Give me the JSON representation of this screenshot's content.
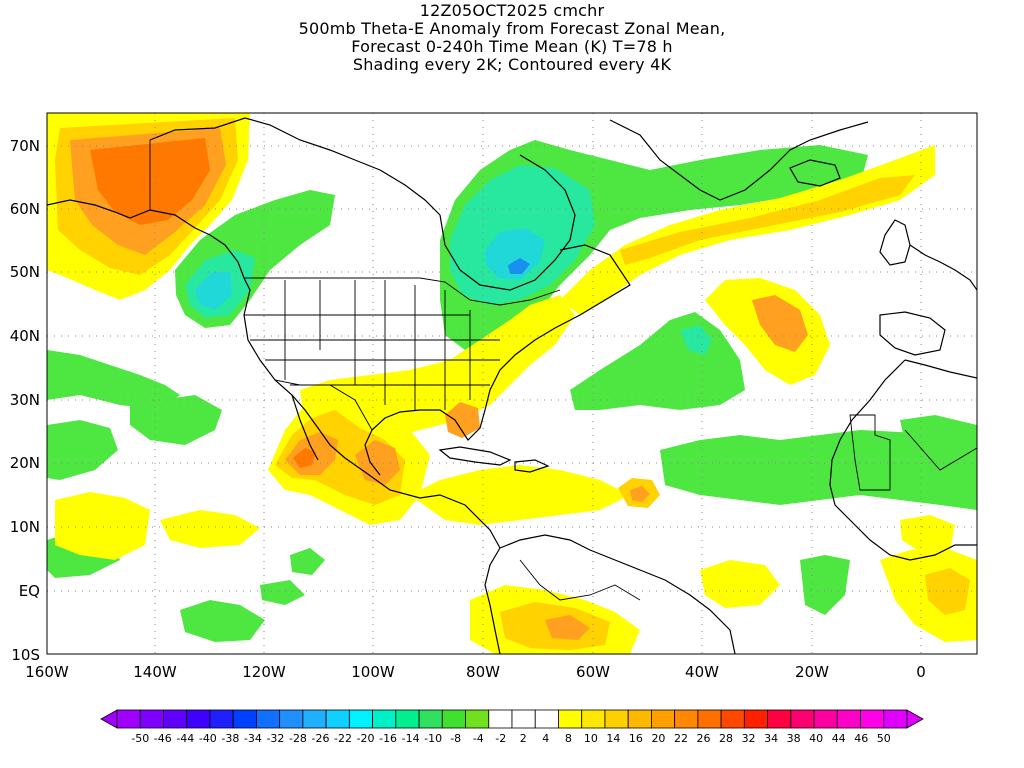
{
  "titles": [
    "12Z05OCT2025 cmchr",
    "500mb Theta-E Anomaly from Forecast Zonal Mean,",
    "Forecast 0-240h Time Mean (K) T=78 h",
    "Shading every 2K; Contoured every 4K"
  ],
  "map": {
    "lon_labels": [
      "160W",
      "140W",
      "120W",
      "100W",
      "80W",
      "60W",
      "40W",
      "20W",
      "0"
    ],
    "lat_labels": [
      "70N",
      "60N",
      "50N",
      "40N",
      "30N",
      "20N",
      "10N",
      "EQ",
      "10S"
    ],
    "grid": "dotted"
  },
  "colorbar": {
    "labels": [
      "-50",
      "-46",
      "-44",
      "-40",
      "-38",
      "-34",
      "-32",
      "-28",
      "-26",
      "-22",
      "-20",
      "-16",
      "-14",
      "-10",
      "-8",
      "-4",
      "-2",
      "2",
      "4",
      "8",
      "10",
      "14",
      "16",
      "20",
      "22",
      "26",
      "28",
      "32",
      "34",
      "38",
      "40",
      "44",
      "46",
      "50"
    ],
    "colors": [
      "#a000ff",
      "#8000ff",
      "#6000ff",
      "#4000ff",
      "#2020ff",
      "#0040ff",
      "#1070ff",
      "#2090ff",
      "#20b0ff",
      "#10d0ff",
      "#00f0ff",
      "#00f0c8",
      "#00f090",
      "#30e060",
      "#40e030",
      "#70e020",
      "#ffffff",
      "#ffffff",
      "#ffffff",
      "#ffff00",
      "#ffe800",
      "#ffd000",
      "#ffb800",
      "#ffa000",
      "#ff8800",
      "#ff7000",
      "#ff4800",
      "#ff2000",
      "#ff0040",
      "#ff0070",
      "#ff00a0",
      "#ff00c8",
      "#ff00e8",
      "#e000ff"
    ]
  },
  "colors": {
    "green": "#4ee640",
    "teal": "#28e8a0",
    "cyan": "#20d8d8",
    "blue": "#1890f0",
    "yellow": "#ffff00",
    "gold": "#ffd200",
    "orange": "#ffa020",
    "redorange": "#ff7800"
  }
}
